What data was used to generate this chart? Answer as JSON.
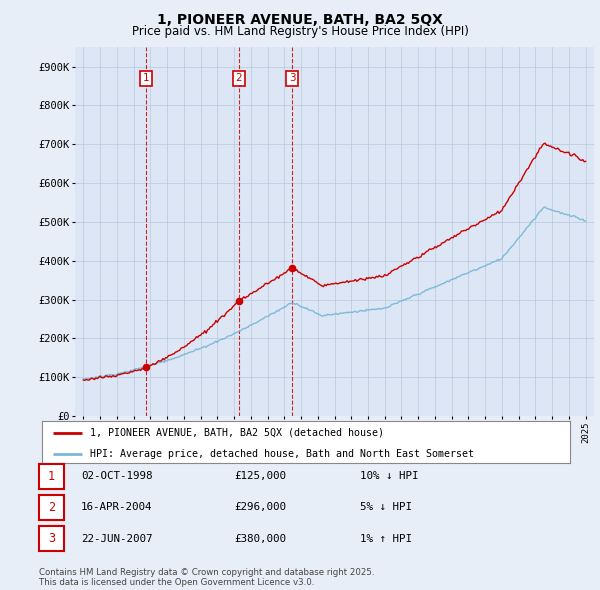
{
  "title": "1, PIONEER AVENUE, BATH, BA2 5QX",
  "subtitle": "Price paid vs. HM Land Registry's House Price Index (HPI)",
  "xlim": [
    1994.5,
    2025.5
  ],
  "ylim": [
    0,
    950000
  ],
  "yticks": [
    0,
    100000,
    200000,
    300000,
    400000,
    500000,
    600000,
    700000,
    800000,
    900000
  ],
  "ytick_labels": [
    "£0",
    "£100K",
    "£200K",
    "£300K",
    "£400K",
    "£500K",
    "£600K",
    "£700K",
    "£800K",
    "£900K"
  ],
  "xticks": [
    1995,
    1996,
    1997,
    1998,
    1999,
    2000,
    2001,
    2002,
    2003,
    2004,
    2005,
    2006,
    2007,
    2008,
    2009,
    2010,
    2011,
    2012,
    2013,
    2014,
    2015,
    2016,
    2017,
    2018,
    2019,
    2020,
    2021,
    2022,
    2023,
    2024,
    2025
  ],
  "price_paid_dates": [
    1998.75,
    2004.29,
    2007.47
  ],
  "price_paid_values": [
    125000,
    296000,
    380000
  ],
  "sale_labels": [
    "1",
    "2",
    "3"
  ],
  "vline_dates": [
    1998.75,
    2004.29,
    2007.47
  ],
  "legend_line1": "1, PIONEER AVENUE, BATH, BA2 5QX (detached house)",
  "legend_line2": "HPI: Average price, detached house, Bath and North East Somerset",
  "table_entries": [
    {
      "num": "1",
      "date": "02-OCT-1998",
      "price": "£125,000",
      "hpi": "10% ↓ HPI"
    },
    {
      "num": "2",
      "date": "16-APR-2004",
      "price": "£296,000",
      "hpi": "5% ↓ HPI"
    },
    {
      "num": "3",
      "date": "22-JUN-2007",
      "price": "£380,000",
      "hpi": "1% ↑ HPI"
    }
  ],
  "footer": "Contains HM Land Registry data © Crown copyright and database right 2025.\nThis data is licensed under the Open Government Licence v3.0.",
  "hpi_color": "#7ab8d9",
  "price_color": "#cc0000",
  "vline_color": "#cc0000",
  "bg_color": "#e8eef8",
  "plot_bg": "#dce6f5"
}
